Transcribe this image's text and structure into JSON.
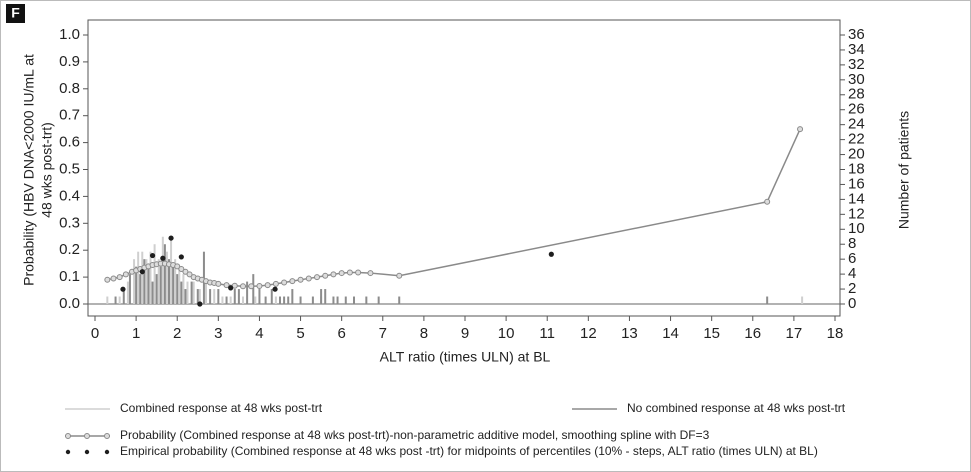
{
  "chart_data": {
    "type": "combo",
    "panel_label": "F",
    "x_label": "ALT ratio (times ULN) at BL",
    "y_label": [
      "Probability (HBV DNA<2000 IU/mL at",
      "48 wks post-trt)"
    ],
    "y2_label": "Number of patients",
    "xlim": [
      0,
      18
    ],
    "xticks": [
      0,
      1,
      2,
      3,
      4,
      5,
      6,
      7,
      8,
      9,
      10,
      11,
      12,
      13,
      14,
      15,
      16,
      17,
      18
    ],
    "ylim": [
      0,
      1
    ],
    "yticks": [
      {
        "value": 0,
        "label": "0.0"
      },
      0.1,
      0.2,
      0.3,
      0.4,
      0.5,
      0.6,
      0.7,
      0.8,
      0.9,
      {
        "value": 1,
        "label": "1.0"
      }
    ],
    "y2lim": [
      0,
      36
    ],
    "y2ticks": [
      0,
      2,
      4,
      6,
      8,
      10,
      12,
      14,
      16,
      18,
      20,
      22,
      24,
      26,
      28,
      30,
      32,
      34,
      36
    ],
    "series": [
      {
        "name": "Combined response at 48 wks post-trt",
        "type": "bar",
        "axis": "y2",
        "color": "#cfcfcf",
        "x": [
          0.3,
          0.6,
          0.8,
          0.95,
          1.05,
          1.15,
          1.25,
          1.35,
          1.45,
          1.55,
          1.65,
          1.75,
          1.85,
          1.95,
          2.05,
          2.15,
          2.25,
          2.4,
          2.55,
          2.7,
          2.9,
          3.1,
          3.3,
          3.6,
          3.9,
          4.4,
          5.5,
          17.2
        ],
        "values": [
          1,
          1,
          3,
          6,
          7,
          7,
          6,
          7,
          8,
          6,
          9,
          7,
          9,
          6,
          5,
          4,
          3,
          3,
          2,
          3,
          2,
          1,
          1,
          1,
          1,
          1,
          1,
          1
        ]
      },
      {
        "name": "No combined response at 48 wks post-trt",
        "type": "bar",
        "axis": "y2",
        "color": "#8c8c8c",
        "x": [
          0.5,
          0.7,
          0.85,
          1.0,
          1.1,
          1.2,
          1.3,
          1.4,
          1.5,
          1.6,
          1.7,
          1.8,
          1.9,
          2.0,
          2.1,
          2.2,
          2.35,
          2.5,
          2.65,
          2.8,
          3.0,
          3.2,
          3.4,
          3.5,
          3.7,
          3.85,
          4.0,
          4.15,
          4.3,
          4.5,
          4.6,
          4.7,
          4.8,
          5.0,
          5.3,
          5.5,
          5.6,
          5.8,
          5.9,
          6.1,
          6.3,
          6.6,
          6.9,
          7.4,
          16.35
        ],
        "values": [
          1,
          2,
          4,
          5,
          4,
          6,
          5,
          3,
          4,
          5,
          8,
          6,
          5,
          4,
          3,
          2,
          3,
          2,
          7,
          2,
          2,
          1,
          2,
          2,
          3,
          4,
          2,
          1,
          2,
          1,
          1,
          1,
          2,
          1,
          1,
          2,
          2,
          1,
          1,
          1,
          1,
          1,
          1,
          1,
          1
        ]
      },
      {
        "name": "Probability (Combined response at 48 wks post-trt)-non-parametric  additive model, smoothing spline with DF=3",
        "type": "line",
        "color": "#8a8a8a",
        "x": [
          0.3,
          0.45,
          0.6,
          0.75,
          0.9,
          1.0,
          1.1,
          1.2,
          1.3,
          1.4,
          1.5,
          1.6,
          1.7,
          1.8,
          1.9,
          2.0,
          2.1,
          2.2,
          2.3,
          2.4,
          2.5,
          2.6,
          2.7,
          2.8,
          2.9,
          3.0,
          3.2,
          3.4,
          3.6,
          3.8,
          4.0,
          4.2,
          4.4,
          4.6,
          4.8,
          5.0,
          5.2,
          5.4,
          5.6,
          5.8,
          6.0,
          6.2,
          6.4,
          6.7,
          7.4,
          16.35,
          17.15
        ],
        "values": [
          0.09,
          0.095,
          0.1,
          0.11,
          0.12,
          0.125,
          0.13,
          0.135,
          0.14,
          0.145,
          0.148,
          0.15,
          0.15,
          0.148,
          0.145,
          0.14,
          0.13,
          0.12,
          0.11,
          0.1,
          0.095,
          0.09,
          0.085,
          0.08,
          0.078,
          0.075,
          0.07,
          0.068,
          0.066,
          0.066,
          0.067,
          0.07,
          0.075,
          0.08,
          0.085,
          0.09,
          0.095,
          0.1,
          0.105,
          0.11,
          0.115,
          0.117,
          0.117,
          0.115,
          0.105,
          0.38,
          0.65
        ]
      },
      {
        "name": "Empirical probability (Combined response at 48 wks post -trt) for midpoints of percentiles (10% - steps, ALT ratio (times ULN) at BL)",
        "type": "scatter",
        "color": "#1e1e1e",
        "x": [
          0.68,
          1.15,
          1.4,
          1.65,
          1.85,
          2.1,
          2.55,
          3.3,
          4.38,
          11.1
        ],
        "values": [
          0.055,
          0.12,
          0.18,
          0.17,
          0.245,
          0.175,
          0.0,
          0.06,
          0.055,
          0.185
        ]
      }
    ]
  }
}
